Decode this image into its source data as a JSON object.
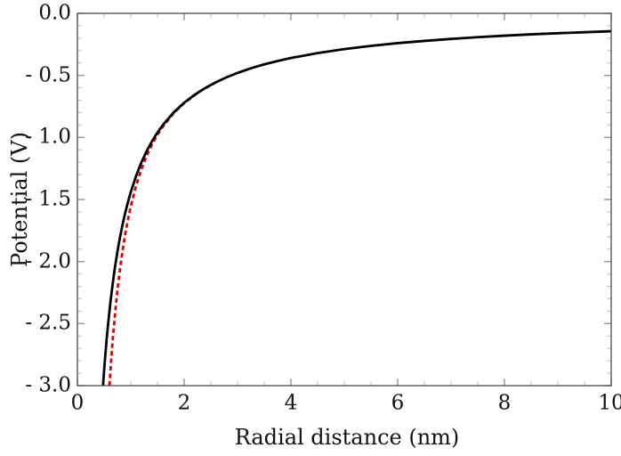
{
  "chart_data": {
    "type": "line",
    "title": "",
    "xlabel": "Radial distance (nm)",
    "ylabel": "Potential (V)",
    "xlim": [
      0,
      10
    ],
    "ylim": [
      -3,
      0
    ],
    "grid": false,
    "legend": "none",
    "x_major_ticks": [
      0,
      2,
      4,
      6,
      8,
      10
    ],
    "x_tick_labels": [
      "0",
      "2",
      "4",
      "6",
      "8",
      "10"
    ],
    "x_minor_step": 0.5,
    "y_major_ticks": [
      0,
      -0.5,
      -1,
      -1.5,
      -2,
      -2.5,
      -3
    ],
    "y_tick_labels": [
      "0.0",
      "- 0.5",
      "- 1.0",
      "- 1.5",
      "- 2.0",
      "- 2.5",
      "- 3.0"
    ],
    "y_minor_step": 0.1,
    "frame_color": "#4a4a4a",
    "major_tick_color": "#999999",
    "minor_tick_color": "#bdbdbd",
    "text_color": "#111111",
    "series": [
      {
        "name": "red-dashed-curve",
        "color": "#dd0000",
        "style": "dashed",
        "width": 2.8,
        "points": [
          [
            0.6,
            -3.0
          ],
          [
            0.63,
            -2.811
          ],
          [
            0.66,
            -2.642
          ],
          [
            0.7,
            -2.444
          ],
          [
            0.75,
            -2.233
          ],
          [
            0.8,
            -2.054
          ],
          [
            0.85,
            -1.902
          ],
          [
            0.9,
            -1.77
          ],
          [
            0.95,
            -1.655
          ],
          [
            1.0,
            -1.555
          ],
          [
            1.1,
            -1.388
          ],
          [
            1.2,
            -1.254
          ],
          [
            1.3,
            -1.145
          ],
          [
            1.4,
            -1.055
          ],
          [
            1.5,
            -0.978
          ],
          [
            1.6,
            -0.913
          ],
          [
            1.8,
            -0.806
          ],
          [
            2.0,
            -0.723
          ],
          [
            2.3,
            -0.627
          ],
          [
            2.6,
            -0.554
          ]
        ]
      },
      {
        "name": "black-solid-curve",
        "color": "#000000",
        "style": "solid",
        "width": 2.8,
        "points": [
          [
            0.48,
            -3.0
          ],
          [
            0.5,
            -2.88
          ],
          [
            0.52,
            -2.769
          ],
          [
            0.55,
            -2.618
          ],
          [
            0.58,
            -2.483
          ],
          [
            0.62,
            -2.323
          ],
          [
            0.66,
            -2.182
          ],
          [
            0.7,
            -2.057
          ],
          [
            0.75,
            -1.92
          ],
          [
            0.8,
            -1.8
          ],
          [
            0.85,
            -1.694
          ],
          [
            0.9,
            -1.6
          ],
          [
            0.95,
            -1.516
          ],
          [
            1.0,
            -1.44
          ],
          [
            1.1,
            -1.309
          ],
          [
            1.2,
            -1.2
          ],
          [
            1.3,
            -1.108
          ],
          [
            1.4,
            -1.029
          ],
          [
            1.5,
            -0.96
          ],
          [
            1.6,
            -0.9
          ],
          [
            1.8,
            -0.8
          ],
          [
            2.0,
            -0.72
          ],
          [
            2.2,
            -0.655
          ],
          [
            2.4,
            -0.6
          ],
          [
            2.6,
            -0.554
          ],
          [
            2.8,
            -0.514
          ],
          [
            3.0,
            -0.48
          ],
          [
            3.25,
            -0.443
          ],
          [
            3.5,
            -0.411
          ],
          [
            3.75,
            -0.384
          ],
          [
            4.0,
            -0.36
          ],
          [
            4.5,
            -0.32
          ],
          [
            5.0,
            -0.288
          ],
          [
            5.5,
            -0.262
          ],
          [
            6.0,
            -0.24
          ],
          [
            6.5,
            -0.222
          ],
          [
            7.0,
            -0.206
          ],
          [
            7.5,
            -0.192
          ],
          [
            8.0,
            -0.18
          ],
          [
            8.5,
            -0.169
          ],
          [
            9.0,
            -0.16
          ],
          [
            9.5,
            -0.152
          ],
          [
            10.0,
            -0.144
          ]
        ]
      }
    ]
  }
}
